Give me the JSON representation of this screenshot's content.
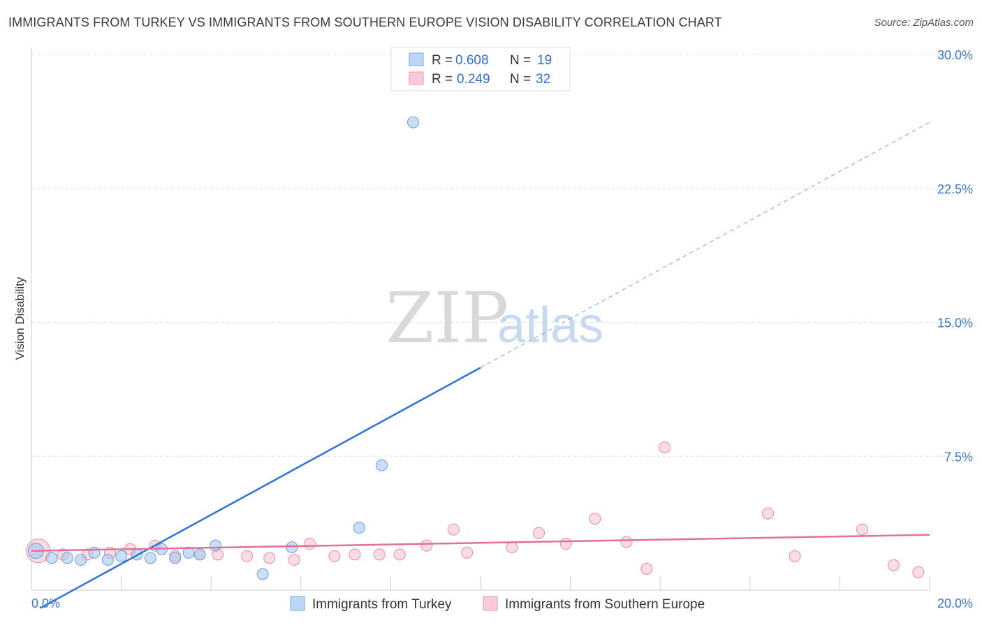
{
  "title": "IMMIGRANTS FROM TURKEY VS IMMIGRANTS FROM SOUTHERN EUROPE VISION DISABILITY CORRELATION CHART",
  "source": "Source: ZipAtlas.com",
  "watermark": {
    "zip": "ZIP",
    "atlas": "atlas"
  },
  "legend": {
    "r_label": "R =",
    "n_label": "N =",
    "entries": [
      {
        "r": "0.608",
        "n": "19"
      },
      {
        "r": "0.249",
        "n": "32"
      }
    ]
  },
  "chart_data": {
    "type": "scatter",
    "title": "IMMIGRANTS FROM TURKEY VS IMMIGRANTS FROM SOUTHERN EUROPE VISION DISABILITY CORRELATION CHART",
    "xlabel": "",
    "ylabel": "Vision Disability",
    "xlim": [
      0,
      20
    ],
    "ylim": [
      0,
      30
    ],
    "x_tick_labels": [
      "0.0%",
      "20.0%"
    ],
    "y_ticks": [
      7.5,
      15.0,
      22.5,
      30.0
    ],
    "y_tick_labels": [
      "7.5%",
      "15.0%",
      "22.5%",
      "30.0%"
    ],
    "legend_position": "top-center",
    "series": [
      {
        "name": "Immigrants from Turkey",
        "color": "#a8c8f0",
        "stroke": "#6a9fd8",
        "line_color": "#2e73d2",
        "trend": {
          "x0": 0.2,
          "y0": -1.0,
          "x1": 20.0,
          "y1": 26.2,
          "solid_until": 10.0
        },
        "points": [
          [
            0.1,
            2.2
          ],
          [
            0.45,
            1.8
          ],
          [
            0.8,
            1.8
          ],
          [
            1.1,
            1.7
          ],
          [
            1.4,
            2.1
          ],
          [
            1.7,
            1.7
          ],
          [
            2.0,
            1.9
          ],
          [
            2.35,
            2.0
          ],
          [
            2.65,
            1.8
          ],
          [
            2.9,
            2.3
          ],
          [
            3.2,
            1.8
          ],
          [
            3.5,
            2.1
          ],
          [
            3.75,
            2.0
          ],
          [
            4.1,
            2.5
          ],
          [
            5.15,
            0.9
          ],
          [
            5.8,
            2.4
          ],
          [
            7.3,
            3.5
          ],
          [
            7.8,
            7.0
          ],
          [
            8.5,
            26.2
          ]
        ]
      },
      {
        "name": "Immigrants from Southern Europe",
        "color": "#f7c5d4",
        "stroke": "#e88aa8",
        "line_color": "#e0709a",
        "trend": {
          "x0": 0.0,
          "y0": 2.2,
          "x1": 20.0,
          "y1": 3.1
        },
        "points": [
          [
            0.15,
            2.2
          ],
          [
            0.7,
            2.0
          ],
          [
            1.25,
            2.0
          ],
          [
            1.75,
            2.1
          ],
          [
            2.2,
            2.3
          ],
          [
            2.75,
            2.5
          ],
          [
            3.2,
            1.9
          ],
          [
            3.75,
            2.0
          ],
          [
            4.15,
            2.0
          ],
          [
            4.8,
            1.9
          ],
          [
            5.3,
            1.8
          ],
          [
            5.85,
            1.7
          ],
          [
            6.2,
            2.6
          ],
          [
            6.75,
            1.9
          ],
          [
            7.2,
            2.0
          ],
          [
            7.75,
            2.0
          ],
          [
            8.2,
            2.0
          ],
          [
            8.8,
            2.5
          ],
          [
            9.4,
            3.4
          ],
          [
            9.7,
            2.1
          ],
          [
            10.7,
            2.4
          ],
          [
            11.3,
            3.2
          ],
          [
            11.9,
            2.6
          ],
          [
            12.55,
            4.0
          ],
          [
            13.25,
            2.7
          ],
          [
            13.7,
            1.2
          ],
          [
            14.1,
            8.0
          ],
          [
            16.4,
            4.3
          ],
          [
            17.0,
            1.9
          ],
          [
            18.5,
            3.4
          ],
          [
            19.2,
            1.4
          ],
          [
            19.75,
            1.0
          ]
        ],
        "large_point": [
          0.15,
          2.2
        ]
      }
    ]
  }
}
